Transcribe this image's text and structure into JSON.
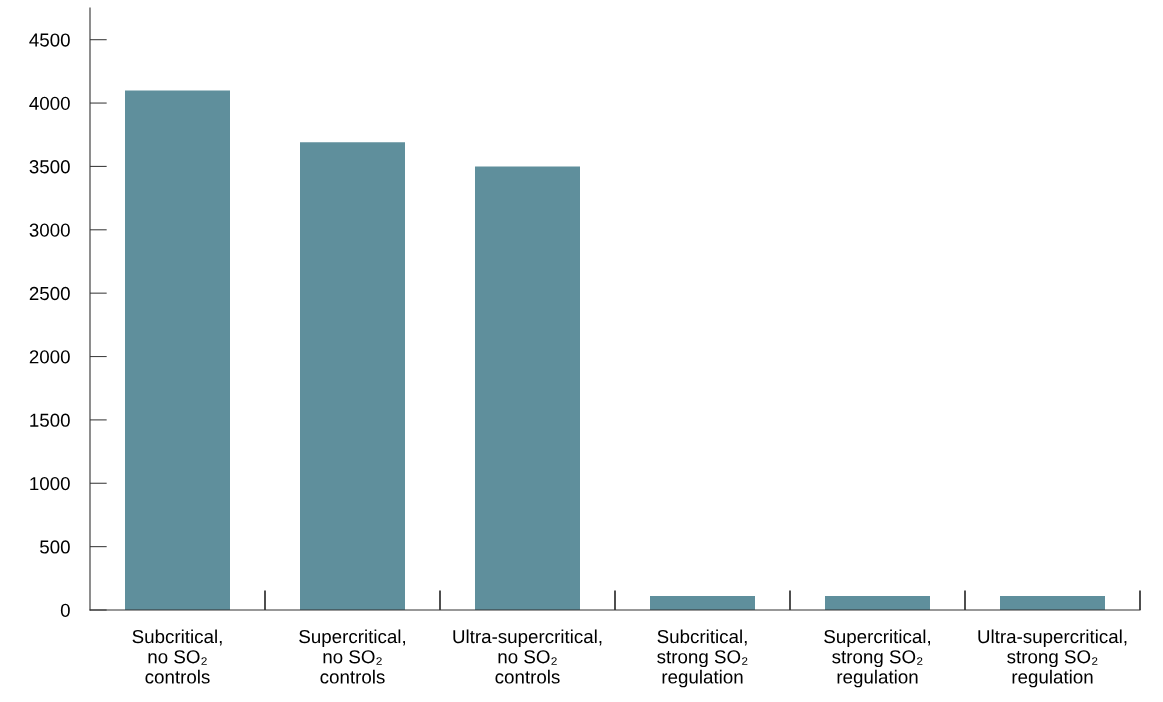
{
  "chart_data": {
    "type": "bar",
    "categories": [
      "Subcritical,\nno SO₂\ncontrols",
      "Supercritical,\nno SO₂\ncontrols",
      "Ultra-supercritical,\nno SO₂\ncontrols",
      "Subcritical,\nstrong SO₂\nregulation",
      "Supercritical,\nstrong SO₂\nregulation",
      "Ultra-supercritical,\nstrong SO₂\nregulation"
    ],
    "values": [
      4100,
      3690,
      3500,
      110,
      110,
      110
    ],
    "color": "#5f8f9c",
    "ylim": [
      0,
      4750
    ],
    "yticks": [
      0,
      500,
      1000,
      1500,
      2000,
      2500,
      3000,
      3500,
      4000,
      4500
    ],
    "grid": false,
    "legend": false
  }
}
